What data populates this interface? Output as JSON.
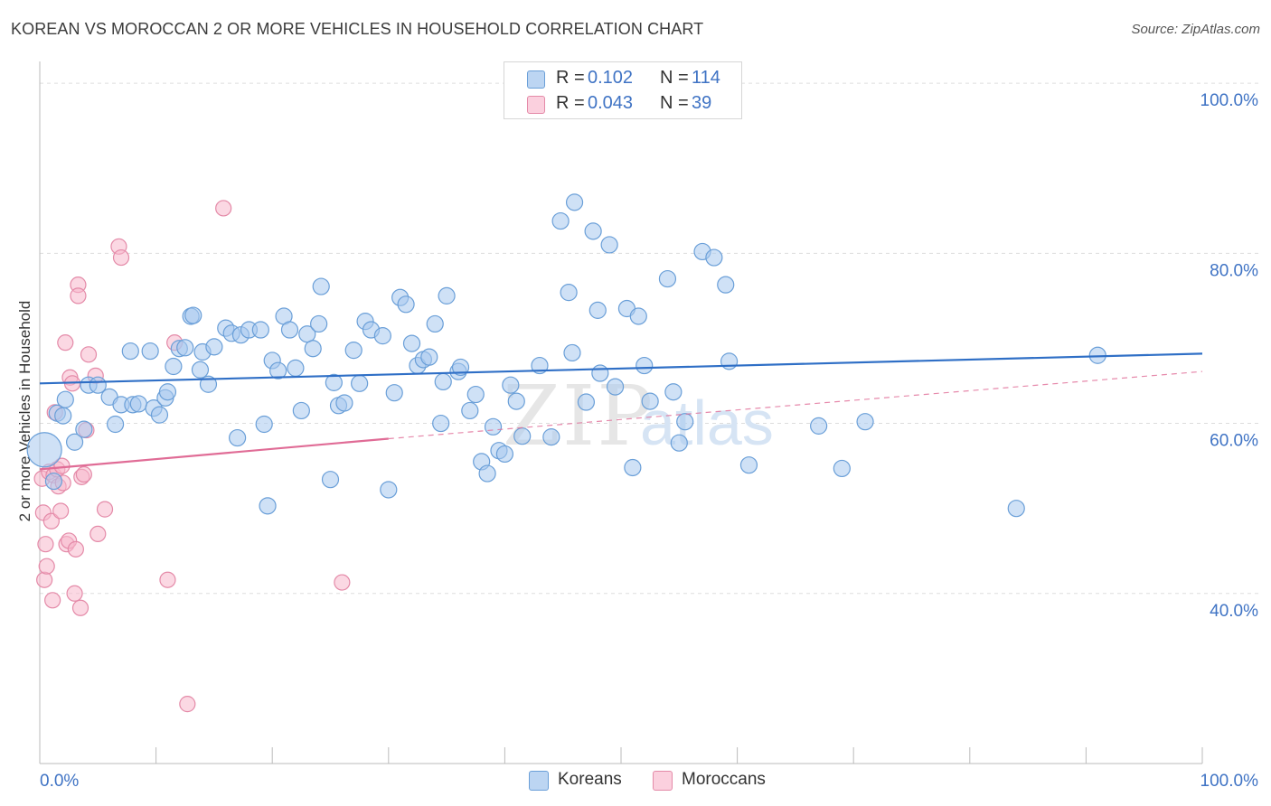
{
  "header": {
    "title": "KOREAN VS MOROCCAN 2 OR MORE VEHICLES IN HOUSEHOLD CORRELATION CHART",
    "source": "Source: ZipAtlas.com"
  },
  "watermark": {
    "part1": "ZIP",
    "part2": "atlas"
  },
  "legend_top": [
    {
      "r_label": "R =",
      "r_value": "0.102",
      "n_label": "N =",
      "n_value": "114"
    },
    {
      "r_label": "R =",
      "r_value": "0.043",
      "n_label": "N =",
      "n_value": "39"
    }
  ],
  "legend_bottom": [
    {
      "label": "Koreans"
    },
    {
      "label": "Moroccans"
    }
  ],
  "colors": {
    "korean_fill": "#a8c8ee",
    "korean_stroke": "#6a9fd8",
    "korean_line": "#2f6fc6",
    "moroccan_fill": "#f7b8cc",
    "moroccan_stroke": "#e48aa8",
    "moroccan_line": "#e06c96",
    "axis_text": "#3f73c4",
    "grid": "#dddddd"
  },
  "chart_data": {
    "type": "scatter",
    "title": "KOREAN VS MOROCCAN 2 OR MORE VEHICLES IN HOUSEHOLD CORRELATION CHART",
    "xlabel": "",
    "ylabel": "2 or more Vehicles in Household",
    "xlim": [
      0,
      100
    ],
    "ylim": [
      20,
      101.5
    ],
    "x_tick_labels": [
      "0.0%",
      "100.0%"
    ],
    "y_ticks": [
      {
        "value": 40,
        "label": "40.0%"
      },
      {
        "value": 60,
        "label": "60.0%"
      },
      {
        "value": 80,
        "label": "80.0%"
      },
      {
        "value": 100,
        "label": "100.0%"
      }
    ],
    "grid": true,
    "legend_position": "top-center",
    "series": [
      {
        "name": "Koreans",
        "R": 0.102,
        "N": 114,
        "trend": {
          "x0": 0,
          "y0": 64.7,
          "x1": 100,
          "y1": 68.2
        },
        "points": [
          [
            0.4,
            56.9,
            "L"
          ],
          [
            1.2,
            53.2
          ],
          [
            1.5,
            61.2
          ],
          [
            2,
            60.9
          ],
          [
            2.2,
            62.8
          ],
          [
            3,
            57.8
          ],
          [
            3.8,
            59.3
          ],
          [
            4.2,
            64.5
          ],
          [
            5,
            64.5
          ],
          [
            6,
            63.1
          ],
          [
            6.5,
            59.9
          ],
          [
            7,
            62.2
          ],
          [
            7.8,
            68.5
          ],
          [
            8,
            62.2
          ],
          [
            8.5,
            62.3
          ],
          [
            9.5,
            68.5
          ],
          [
            9.8,
            61.8
          ],
          [
            10.3,
            61
          ],
          [
            10.8,
            63
          ],
          [
            11,
            63.7
          ],
          [
            11.5,
            66.7
          ],
          [
            12,
            68.8
          ],
          [
            12.5,
            68.9
          ],
          [
            13,
            72.6
          ],
          [
            13.2,
            72.7
          ],
          [
            13.8,
            66.3
          ],
          [
            14,
            68.4
          ],
          [
            14.5,
            64.6
          ],
          [
            15,
            69
          ],
          [
            16,
            71.2
          ],
          [
            16.5,
            70.6
          ],
          [
            17,
            58.3
          ],
          [
            17.3,
            70.4
          ],
          [
            18,
            71
          ],
          [
            19,
            71
          ],
          [
            19.3,
            59.9
          ],
          [
            19.6,
            50.3
          ],
          [
            20,
            67.4
          ],
          [
            20.5,
            66.2
          ],
          [
            21,
            72.6
          ],
          [
            21.5,
            71
          ],
          [
            22,
            66.5
          ],
          [
            22.5,
            61.5
          ],
          [
            23,
            70.5
          ],
          [
            23.5,
            68.8
          ],
          [
            24,
            71.7
          ],
          [
            24.2,
            76.1
          ],
          [
            25,
            53.4
          ],
          [
            25.3,
            64.8
          ],
          [
            25.7,
            62.1
          ],
          [
            26.2,
            62.4
          ],
          [
            27,
            68.6
          ],
          [
            27.5,
            64.7
          ],
          [
            28,
            72
          ],
          [
            28.5,
            71
          ],
          [
            29.5,
            70.3
          ],
          [
            30,
            52.2
          ],
          [
            30.5,
            63.6
          ],
          [
            31,
            74.8
          ],
          [
            31.5,
            74
          ],
          [
            32,
            69.4
          ],
          [
            32.5,
            66.8
          ],
          [
            33,
            67.5
          ],
          [
            33.5,
            67.8
          ],
          [
            34,
            71.7
          ],
          [
            34.5,
            60
          ],
          [
            34.7,
            64.9
          ],
          [
            35,
            75
          ],
          [
            36,
            66.1
          ],
          [
            36.2,
            66.6
          ],
          [
            37,
            61.5
          ],
          [
            37.5,
            63.4
          ],
          [
            38,
            55.5
          ],
          [
            38.5,
            54.1
          ],
          [
            39,
            59.6
          ],
          [
            39.5,
            56.8
          ],
          [
            40,
            56.4
          ],
          [
            40.5,
            64.5
          ],
          [
            41,
            62.6
          ],
          [
            41.5,
            58.5
          ],
          [
            43,
            66.8
          ],
          [
            44,
            58.4
          ],
          [
            44.8,
            83.8
          ],
          [
            45.5,
            75.4
          ],
          [
            45.8,
            68.3
          ],
          [
            46,
            86
          ],
          [
            47,
            62.5
          ],
          [
            47.6,
            82.6
          ],
          [
            48,
            73.3
          ],
          [
            48.2,
            65.9
          ],
          [
            49,
            81
          ],
          [
            49.5,
            64.3
          ],
          [
            50.5,
            73.5
          ],
          [
            51,
            54.8
          ],
          [
            51.5,
            72.6
          ],
          [
            52,
            66.8
          ],
          [
            52.5,
            62.6
          ],
          [
            54,
            77
          ],
          [
            54.5,
            63.7
          ],
          [
            55,
            57.7
          ],
          [
            55.5,
            60.2
          ],
          [
            57,
            80.2
          ],
          [
            58,
            79.5
          ],
          [
            59,
            76.3
          ],
          [
            59.3,
            67.3
          ],
          [
            61,
            55.1
          ],
          [
            67,
            59.7
          ],
          [
            69,
            54.7
          ],
          [
            71,
            60.2
          ],
          [
            84,
            50
          ],
          [
            91,
            68
          ]
        ]
      },
      {
        "name": "Moroccans",
        "R": 0.043,
        "N": 39,
        "trend": {
          "x0": 0,
          "y0": 54.6,
          "x1": 30,
          "y1": 58.2
        },
        "trend_extension": {
          "x0": 30,
          "y0": 58.2,
          "x1": 100,
          "y1": 66.1
        },
        "points": [
          [
            0.2,
            53.5
          ],
          [
            0.3,
            49.5
          ],
          [
            0.4,
            41.6
          ],
          [
            0.5,
            45.8
          ],
          [
            0.6,
            43.2
          ],
          [
            0.8,
            54.3
          ],
          [
            1,
            48.5
          ],
          [
            1.1,
            39.2
          ],
          [
            1.2,
            53.9
          ],
          [
            1.3,
            61.3
          ],
          [
            1.5,
            54.6
          ],
          [
            1.6,
            52.6
          ],
          [
            1.8,
            49.7
          ],
          [
            2,
            53
          ],
          [
            2.2,
            69.5
          ],
          [
            2.3,
            45.8
          ],
          [
            2.5,
            46.2
          ],
          [
            2.6,
            65.4
          ],
          [
            2.8,
            64.7
          ],
          [
            3,
            40
          ],
          [
            3.1,
            45.2
          ],
          [
            3.3,
            76.3
          ],
          [
            3.3,
            75
          ],
          [
            3.5,
            38.3
          ],
          [
            3.6,
            53.7
          ],
          [
            3.8,
            54
          ],
          [
            4,
            59.2
          ],
          [
            4.2,
            68.1
          ],
          [
            4.8,
            65.6
          ],
          [
            5,
            47
          ],
          [
            5.6,
            49.9
          ],
          [
            6.8,
            80.8
          ],
          [
            7,
            79.5
          ],
          [
            11,
            41.6
          ],
          [
            11.6,
            69.5
          ],
          [
            12.7,
            27
          ],
          [
            15.8,
            85.3
          ],
          [
            26,
            41.3
          ],
          [
            1.9,
            55
          ]
        ]
      }
    ]
  }
}
